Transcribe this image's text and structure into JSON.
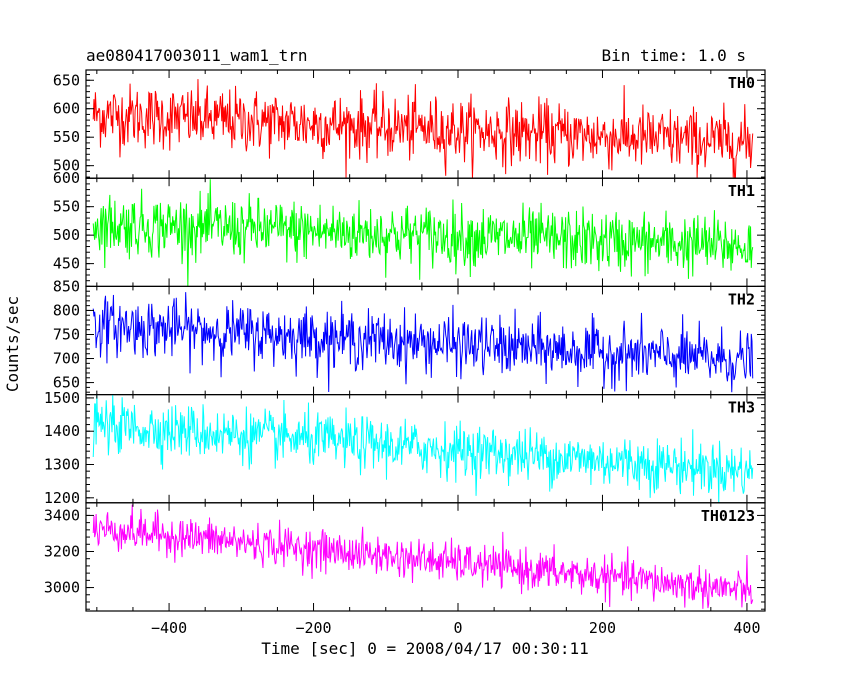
{
  "header": {
    "title": "ae080417003011_wam1_trn",
    "bin_time": "Bin time: 1.0 s"
  },
  "chart_data": {
    "type": "line",
    "title": "ae080417003011_wam1_trn",
    "subtitle": "Bin time: 1.0 s",
    "xlabel": "Time [sec] 0 = 2008/04/17 00:30:11",
    "ylabel": "Counts/sec",
    "xlim": [
      -515,
      425
    ],
    "x_ticks": [
      -400,
      -200,
      0,
      200,
      400
    ],
    "x_range": [
      -505,
      408
    ],
    "grid": false,
    "panels": [
      {
        "name": "TH0",
        "color": "#ff0000",
        "ylim": [
          478,
          668
        ],
        "y_ticks": [
          500,
          550,
          600,
          650
        ],
        "trend": {
          "start": 590,
          "end": 540
        },
        "noise_sd": 28
      },
      {
        "name": "TH1",
        "color": "#00ff00",
        "ylim": [
          410,
          600
        ],
        "y_ticks": [
          450,
          500,
          550,
          600
        ],
        "trend": {
          "start": 520,
          "end": 480
        },
        "noise_sd": 27
      },
      {
        "name": "TH2",
        "color": "#0000ff",
        "ylim": [
          625,
          850
        ],
        "y_ticks": [
          650,
          700,
          750,
          800,
          850
        ],
        "trend": {
          "start": 770,
          "end": 695
        },
        "noise_sd": 30
      },
      {
        "name": "TH3",
        "color": "#00ffff",
        "ylim": [
          1185,
          1510
        ],
        "y_ticks": [
          1200,
          1300,
          1400,
          1500
        ],
        "trend": {
          "start": 1420,
          "end": 1280
        },
        "noise_sd": 40
      },
      {
        "name": "TH0123",
        "color": "#ff00ff",
        "ylim": [
          2870,
          3470
        ],
        "y_ticks": [
          3000,
          3200,
          3400
        ],
        "trend": {
          "start": 3330,
          "end": 2980
        },
        "noise_sd": 55
      }
    ]
  }
}
